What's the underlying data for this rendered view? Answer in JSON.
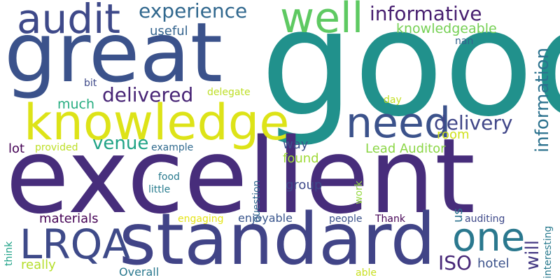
{
  "words": [
    {
      "text": "good",
      "color": "#21918c"
    },
    {
      "text": "excellent",
      "color": "#472d7b"
    },
    {
      "text": "great",
      "color": "#3b528b"
    },
    {
      "text": "standard",
      "color": "#414487"
    },
    {
      "text": "knowledge",
      "color": "#dde318"
    },
    {
      "text": "well",
      "color": "#5ec962"
    },
    {
      "text": "audit",
      "color": "#3e4989"
    },
    {
      "text": "need",
      "color": "#3b528b"
    },
    {
      "text": "LRQA",
      "color": "#3e4a89"
    },
    {
      "text": "one",
      "color": "#2a788e"
    },
    {
      "text": "experience",
      "color": "#31688e"
    },
    {
      "text": "informative",
      "color": "#481f70"
    },
    {
      "text": "information",
      "color": "#2c728e"
    },
    {
      "text": "delivered",
      "color": "#482576"
    },
    {
      "text": "delivery",
      "color": "#404688"
    },
    {
      "text": "knowledgeable",
      "color": "#75d054"
    },
    {
      "text": "useful",
      "color": "#33638d"
    },
    {
      "text": "venue",
      "color": "#20a386"
    },
    {
      "text": "nan",
      "color": "#33638d"
    },
    {
      "text": "bit",
      "color": "#3e4989"
    },
    {
      "text": "delegate",
      "color": "#bddf26"
    },
    {
      "text": "much",
      "color": "#27ad81"
    },
    {
      "text": "day",
      "color": "#c2df23"
    },
    {
      "text": "room",
      "color": "#d0e11c"
    },
    {
      "text": "lot",
      "color": "#440154"
    },
    {
      "text": "provided",
      "color": "#bddf26"
    },
    {
      "text": "example",
      "color": "#306a8e"
    },
    {
      "text": "way",
      "color": "#3b528b"
    },
    {
      "text": "found",
      "color": "#a0da39"
    },
    {
      "text": "Lead Auditor",
      "color": "#8bd646"
    },
    {
      "text": "food",
      "color": "#297a8e"
    },
    {
      "text": "little",
      "color": "#287c8e"
    },
    {
      "text": "group",
      "color": "#3e4989"
    },
    {
      "text": "question",
      "color": "#31688e"
    },
    {
      "text": "work",
      "color": "#95d840"
    },
    {
      "text": "materials",
      "color": "#440154"
    },
    {
      "text": "engaging",
      "color": "#e5e419"
    },
    {
      "text": "enjoyable",
      "color": "#39558c"
    },
    {
      "text": "people",
      "color": "#3b528b"
    },
    {
      "text": "Thank",
      "color": "#440154"
    },
    {
      "text": "auditing",
      "color": "#3e4989"
    },
    {
      "text": "will",
      "color": "#443983"
    },
    {
      "text": "us",
      "color": "#2c728e"
    },
    {
      "text": "ISO",
      "color": "#482878"
    },
    {
      "text": "hotel",
      "color": "#3b528b"
    },
    {
      "text": "interesting",
      "color": "#297a8e"
    },
    {
      "text": "think",
      "color": "#1fa187"
    },
    {
      "text": "really",
      "color": "#b5de2b"
    },
    {
      "text": "Overall",
      "color": "#2a788e"
    },
    {
      "text": "able",
      "color": "#c8e020"
    }
  ]
}
